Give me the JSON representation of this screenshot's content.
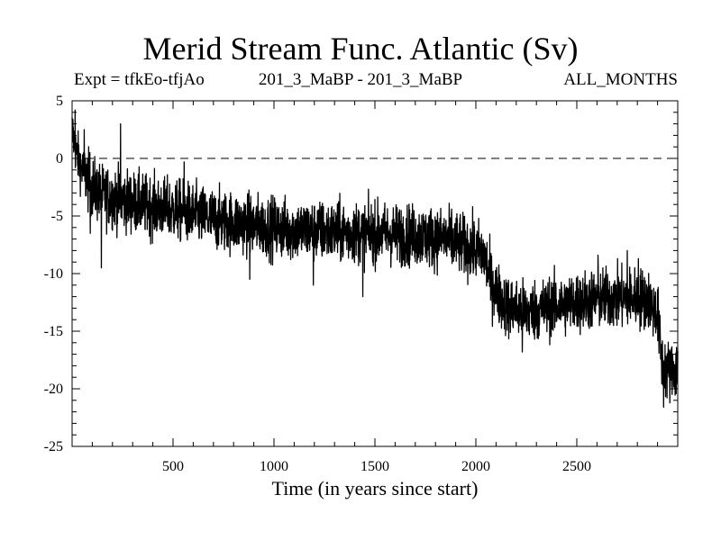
{
  "chart_data": {
    "type": "line",
    "title": "Merid Stream Func. Atlantic (Sv)",
    "subtitle_left": "Expt = tfkEo-tfjAo",
    "subtitle_center": "201_3_MaBP - 201_3_MaBP",
    "subtitle_right": "ALL_MONTHS",
    "xlabel": "Time (in years since start)",
    "ylabel": "",
    "xlim": [
      0,
      3000
    ],
    "ylim": [
      -25,
      5
    ],
    "xticks": [
      500,
      1000,
      1500,
      2000,
      2500
    ],
    "yticks": [
      5,
      0,
      -5,
      -10,
      -15,
      -20,
      -25
    ],
    "zero_line": {
      "value": 0,
      "style": "dashed"
    },
    "grid": false,
    "legend": "none",
    "series": [
      {
        "color": "#000000",
        "trend": {
          "x": [
            0,
            20,
            50,
            100,
            150,
            250,
            400,
            550,
            700,
            900,
            1100,
            1300,
            1500,
            1700,
            1850,
            1950,
            2040,
            2080,
            2150,
            2250,
            2400,
            2600,
            2750,
            2850,
            2900,
            2920,
            2950,
            3000
          ],
          "y": [
            2.5,
            0.5,
            -1.0,
            -2.5,
            -3.2,
            -3.6,
            -4.2,
            -4.6,
            -5.3,
            -5.8,
            -6.2,
            -6.4,
            -6.5,
            -6.7,
            -7.0,
            -7.6,
            -8.3,
            -11.0,
            -12.8,
            -13.3,
            -12.8,
            -12.2,
            -12.1,
            -12.2,
            -13.5,
            -17.5,
            -18.5,
            -18.3
          ]
        },
        "noise_amplitude": 1.3,
        "spikes": [
          {
            "x": 15,
            "y": 4.2
          },
          {
            "x": 60,
            "y": 2.5
          },
          {
            "x": 90,
            "y": -6.5
          },
          {
            "x": 145,
            "y": -9.5
          },
          {
            "x": 240,
            "y": 3.0
          },
          {
            "x": 555,
            "y": -0.3
          },
          {
            "x": 880,
            "y": -10.5
          },
          {
            "x": 1195,
            "y": -11.0
          },
          {
            "x": 1440,
            "y": -12.0
          },
          {
            "x": 1880,
            "y": -4.4
          },
          {
            "x": 2230,
            "y": -16.8
          },
          {
            "x": 2605,
            "y": -8.4
          },
          {
            "x": 2750,
            "y": -8.0
          },
          {
            "x": 2805,
            "y": -8.7
          },
          {
            "x": 2930,
            "y": -21.6
          }
        ]
      }
    ]
  }
}
